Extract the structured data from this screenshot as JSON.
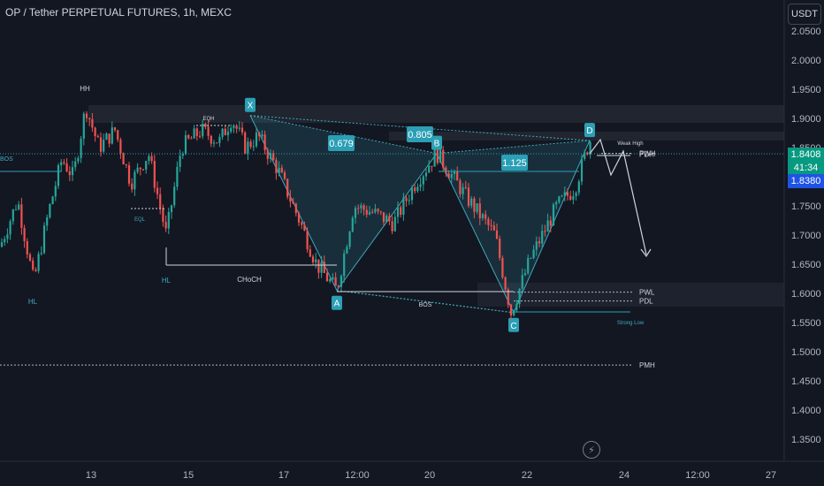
{
  "header": {
    "title": "OP / Tether PERPETUAL FUTURES, 1h, MEXC",
    "currency": "USDT"
  },
  "price_tags": {
    "current": "1.8408",
    "countdown": "41:34",
    "level": "1.8380"
  },
  "colors": {
    "up": "#26a69a",
    "down": "#ef5350",
    "pattern": "#3fa8be",
    "bg": "#131722"
  },
  "chart_data": {
    "type": "candlestick",
    "y_ticks": [
      "2.0500",
      "2.0000",
      "1.9500",
      "1.9000",
      "1.8500",
      "1.8000",
      "1.7500",
      "1.7000",
      "1.6500",
      "1.6000",
      "1.5500",
      "1.5000",
      "1.4500",
      "1.4000",
      "1.3500"
    ],
    "x_ticks": [
      "13",
      "15",
      "17",
      "12:00",
      "20",
      "22",
      "24",
      "12:00",
      "27"
    ],
    "harmonic_pattern": {
      "points": [
        {
          "label": "X",
          "price": 1.905
        },
        {
          "label": "A",
          "price": 1.605
        },
        {
          "label": "B",
          "price": 1.84
        },
        {
          "label": "C",
          "price": 1.567
        },
        {
          "label": "D",
          "price": 1.862
        }
      ],
      "ratios": [
        "0.679",
        "0.805",
        "1.125"
      ]
    },
    "structure_labels": [
      "HH",
      "EQH",
      "EQL",
      "HL",
      "HL",
      "CHoCH",
      "BOS",
      "BOS",
      "Weak High",
      "Strong Low"
    ],
    "levels": [
      {
        "label": "PWH",
        "price": 1.84
      },
      {
        "label": "PDH",
        "price": 1.84
      },
      {
        "label": "PWL",
        "price": 1.602
      },
      {
        "label": "PDL",
        "price": 1.587
      },
      {
        "label": "PMH",
        "price": 1.477
      }
    ]
  }
}
